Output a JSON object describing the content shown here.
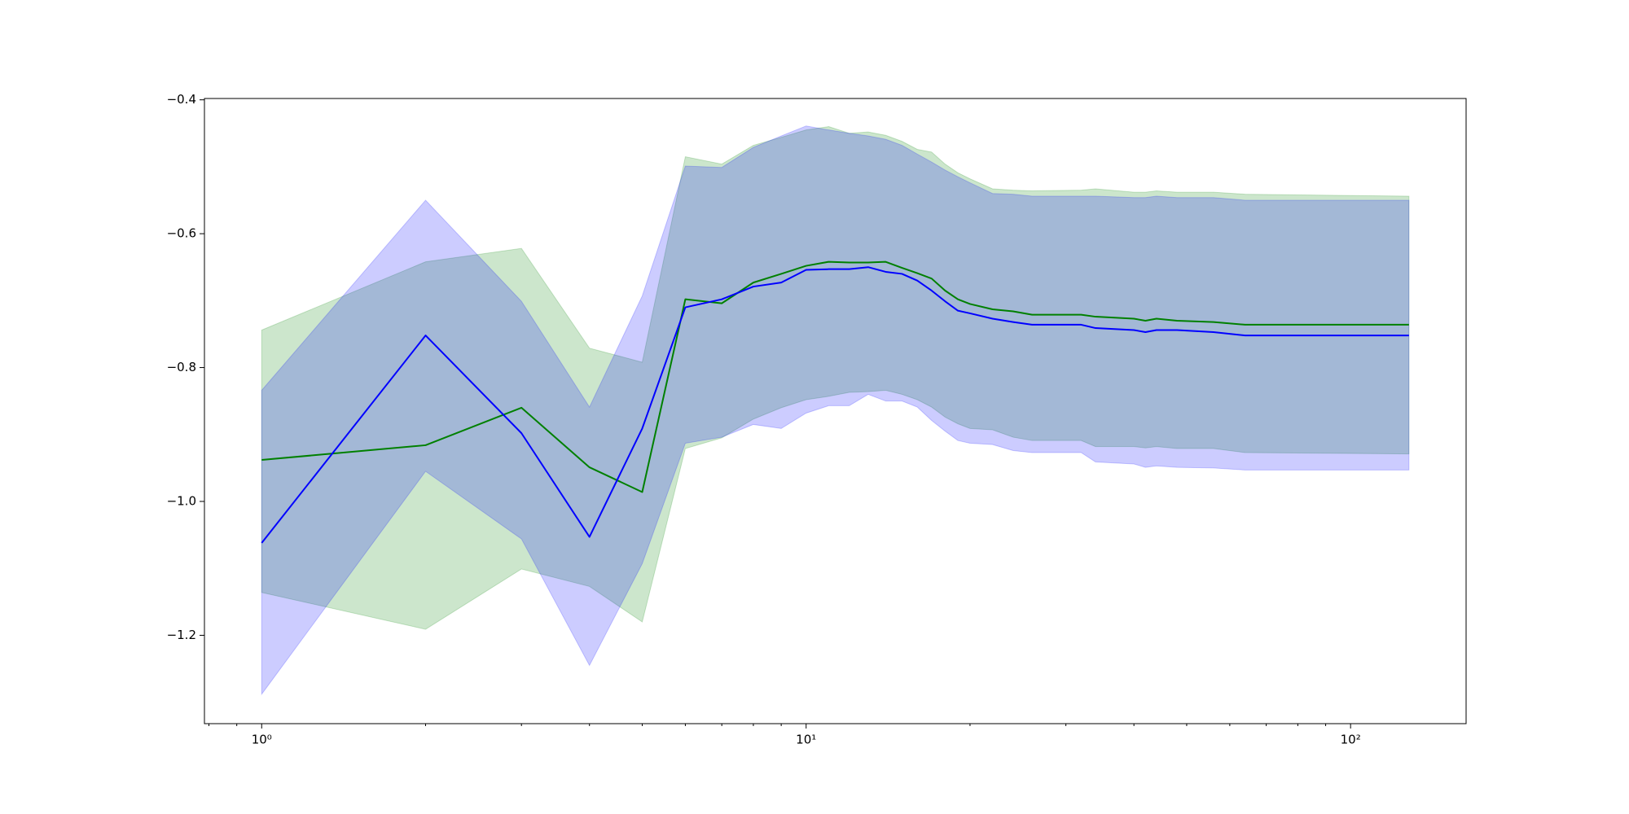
{
  "chart_data": {
    "type": "line",
    "x": [
      1,
      2,
      3,
      4,
      5,
      6,
      7,
      8,
      9,
      10,
      11,
      12,
      13,
      14,
      15,
      16,
      17,
      18,
      19,
      20,
      22,
      24,
      26,
      32,
      34,
      40,
      42,
      44,
      48,
      56,
      64,
      128
    ],
    "xscale": "log",
    "xlim": [
      0.785,
      163
    ],
    "xticks": [
      {
        "value": 1,
        "label": "10⁰"
      },
      {
        "value": 10,
        "label": "10¹"
      },
      {
        "value": 100,
        "label": "10²"
      }
    ],
    "xminorticks": [
      0.8,
      0.9,
      2,
      3,
      4,
      5,
      6,
      7,
      8,
      9,
      20,
      30,
      40,
      50,
      60,
      70,
      80,
      90
    ],
    "ylim": [
      -1.332,
      -0.398
    ],
    "yticks": [
      {
        "value": -1.2,
        "label": "−1.2"
      },
      {
        "value": -1.0,
        "label": "−1.0"
      },
      {
        "value": -0.8,
        "label": "−0.8"
      },
      {
        "value": -0.6,
        "label": "−0.6"
      },
      {
        "value": -0.4,
        "label": "−0.4"
      }
    ],
    "fill_alpha": 0.2,
    "series": [
      {
        "color": "green",
        "values": [
          -0.938,
          -0.916,
          -0.86,
          -0.949,
          -0.986,
          -0.698,
          -0.704,
          -0.673,
          -0.66,
          -0.648,
          -0.642,
          -0.643,
          -0.643,
          -0.642,
          -0.651,
          -0.659,
          -0.667,
          -0.685,
          -0.698,
          -0.705,
          -0.713,
          -0.716,
          -0.721,
          -0.721,
          -0.724,
          -0.727,
          -0.73,
          -0.727,
          -0.73,
          -0.732,
          -0.736,
          -0.736
        ],
        "upper": [
          -0.744,
          -0.642,
          -0.622,
          -0.771,
          -0.792,
          -0.485,
          -0.496,
          -0.468,
          -0.456,
          -0.445,
          -0.44,
          -0.45,
          -0.448,
          -0.453,
          -0.462,
          -0.474,
          -0.478,
          -0.496,
          -0.509,
          -0.518,
          -0.533,
          -0.535,
          -0.536,
          -0.535,
          -0.533,
          -0.538,
          -0.538,
          -0.536,
          -0.538,
          -0.538,
          -0.541,
          -0.544
        ],
        "lower": [
          -1.136,
          -1.191,
          -1.101,
          -1.127,
          -1.18,
          -0.921,
          -0.905,
          -0.877,
          -0.86,
          -0.848,
          -0.843,
          -0.837,
          -0.836,
          -0.834,
          -0.84,
          -0.848,
          -0.859,
          -0.874,
          -0.884,
          -0.891,
          -0.893,
          -0.904,
          -0.909,
          -0.909,
          -0.918,
          -0.918,
          -0.92,
          -0.918,
          -0.921,
          -0.921,
          -0.927,
          -0.929
        ]
      },
      {
        "color": "blue",
        "values": [
          -1.062,
          -0.752,
          -0.898,
          -1.053,
          -0.891,
          -0.71,
          -0.698,
          -0.679,
          -0.673,
          -0.654,
          -0.653,
          -0.653,
          -0.65,
          -0.657,
          -0.66,
          -0.67,
          -0.685,
          -0.701,
          -0.715,
          -0.719,
          -0.727,
          -0.732,
          -0.736,
          -0.736,
          -0.741,
          -0.744,
          -0.747,
          -0.744,
          -0.744,
          -0.747,
          -0.752,
          -0.752
        ],
        "upper": [
          -0.834,
          -0.55,
          -0.701,
          -0.859,
          -0.693,
          -0.499,
          -0.501,
          -0.471,
          -0.454,
          -0.439,
          -0.445,
          -0.45,
          -0.454,
          -0.459,
          -0.468,
          -0.481,
          -0.493,
          -0.505,
          -0.515,
          -0.524,
          -0.54,
          -0.541,
          -0.544,
          -0.544,
          -0.544,
          -0.546,
          -0.546,
          -0.544,
          -0.546,
          -0.546,
          -0.55,
          -0.55
        ],
        "lower": [
          -1.288,
          -0.955,
          -1.056,
          -1.245,
          -1.093,
          -0.913,
          -0.904,
          -0.885,
          -0.891,
          -0.868,
          -0.857,
          -0.857,
          -0.84,
          -0.85,
          -0.85,
          -0.859,
          -0.879,
          -0.895,
          -0.909,
          -0.913,
          -0.915,
          -0.924,
          -0.927,
          -0.927,
          -0.941,
          -0.944,
          -0.949,
          -0.947,
          -0.949,
          -0.95,
          -0.953,
          -0.953
        ]
      }
    ]
  }
}
